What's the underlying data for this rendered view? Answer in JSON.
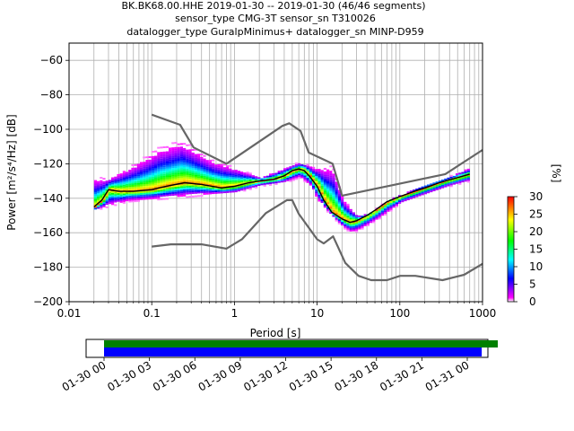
{
  "title_lines": [
    "BK.BK68.00.HHE   2019-01-30 -- 2019-01-30  (46/46 segments)",
    "sensor_type CMG-3T sensor_sn T310026",
    "datalogger_type GuralpMinimus+ datalogger_sn MINP-D959"
  ],
  "chart_data": [
    {
      "type": "heatmap",
      "xlabel": "Period [s]",
      "ylabel": "Power [m²/s⁴/Hz] [dB]",
      "xscale": "log",
      "xlim": [
        0.01,
        1000
      ],
      "ylim": [
        -200,
        -50
      ],
      "x_ticks": [
        0.01,
        0.1,
        1,
        10,
        100,
        1000
      ],
      "x_tick_labels": [
        "0.01",
        "0.1",
        "1",
        "10",
        "100",
        "1000"
      ],
      "y_ticks": [
        -200,
        -180,
        -160,
        -140,
        -120,
        -100,
        -80,
        -60
      ],
      "y_tick_labels": [
        "−200",
        "−180",
        "−160",
        "−140",
        "−120",
        "−100",
        "−80",
        "−60"
      ],
      "grid": true,
      "colorbar": {
        "label": "[%]",
        "range": [
          0,
          30
        ],
        "ticks": [
          0,
          5,
          10,
          15,
          20,
          25,
          30
        ],
        "colors": [
          "#ffffff",
          "#ff00ff",
          "#0000ff",
          "#00ffff",
          "#00ff00",
          "#ffff00",
          "#ff0000"
        ]
      },
      "series": [
        {
          "role": "high-noise-model",
          "color": "#666666",
          "x": [
            0.1,
            0.22,
            0.32,
            0.8,
            3.8,
            4.6,
            6.3,
            7.9,
            15.4,
            20,
            354.8,
            1000
          ],
          "y": [
            -91.5,
            -97.4,
            -110.5,
            -120,
            -98,
            -96.5,
            -101,
            -113.5,
            -120,
            -138.5,
            -126,
            -112
          ]
        },
        {
          "role": "low-noise-model",
          "color": "#666666",
          "x": [
            0.1,
            0.17,
            0.4,
            0.8,
            1.24,
            2.4,
            4.3,
            5,
            6,
            10,
            12,
            15.6,
            21.9,
            31.6,
            45,
            70,
            101,
            154,
            328,
            600,
            1000
          ],
          "y": [
            -168,
            -166.7,
            -166.7,
            -169.2,
            -163.7,
            -148.6,
            -141.1,
            -141.1,
            -149,
            -163.8,
            -166.2,
            -162.1,
            -177.5,
            -185,
            -187.5,
            -187.5,
            -185,
            -185,
            -187.5,
            -184.4,
            -178
          ]
        },
        {
          "role": "mode",
          "color": "#000000",
          "x": [
            0.02,
            0.025,
            0.03,
            0.04,
            0.06,
            0.1,
            0.15,
            0.25,
            0.4,
            0.7,
            1,
            1.5,
            2,
            3,
            4,
            5,
            6,
            7,
            8,
            10,
            12,
            15,
            20,
            25,
            30,
            40,
            50,
            70,
            100,
            150,
            200,
            300,
            500,
            700
          ],
          "y": [
            -145,
            -141,
            -135,
            -136,
            -136,
            -135,
            -133,
            -131,
            -132,
            -134,
            -133,
            -131,
            -130,
            -129,
            -127,
            -124,
            -123,
            -124,
            -127,
            -133,
            -141,
            -148,
            -152,
            -154,
            -153,
            -150,
            -147,
            -142,
            -139,
            -136,
            -134,
            -131,
            -128,
            -126
          ]
        },
        {
          "role": "density-upper-edge",
          "color": "#ff00ff",
          "x": [
            0.03,
            0.05,
            0.08,
            0.12,
            0.17,
            0.22,
            0.3,
            0.5,
            1,
            2,
            4,
            6,
            9,
            15,
            20,
            30,
            50,
            100,
            200,
            400,
            700
          ],
          "y": [
            -128,
            -122,
            -116,
            -110,
            -108,
            -106,
            -110,
            -117,
            -122,
            -128,
            -122,
            -119,
            -122,
            -121,
            -140,
            -150,
            -148,
            -138,
            -132,
            -127,
            -122
          ]
        },
        {
          "role": "density-lower-edge",
          "color": "#ff00ff",
          "x": [
            0.02,
            0.05,
            0.1,
            0.3,
            1,
            2,
            4,
            6,
            8,
            10,
            15,
            20,
            25,
            30,
            50,
            100,
            200,
            400,
            700
          ],
          "y": [
            -147,
            -142,
            -141,
            -139,
            -137,
            -133,
            -131,
            -128,
            -133,
            -142,
            -151,
            -157,
            -160,
            -159,
            -153,
            -143,
            -138,
            -133,
            -130
          ]
        }
      ]
    },
    {
      "type": "bar",
      "role": "data-coverage",
      "xlim": [
        "2019-01-30 00:00",
        "2019-01-31 01:00"
      ],
      "x_tick_labels": [
        "01-30 00",
        "01-30 03",
        "01-30 06",
        "01-30 09",
        "01-30 12",
        "01-30 15",
        "01-30 18",
        "01-30 21",
        "01-31 00"
      ],
      "bars": [
        {
          "color": "#008000",
          "start": "2019-01-30 00:00",
          "end": "2019-01-31 00:30"
        },
        {
          "color": "#0000ff",
          "start": "2019-01-30 00:00",
          "end": "2019-01-30 23:30"
        }
      ]
    }
  ]
}
